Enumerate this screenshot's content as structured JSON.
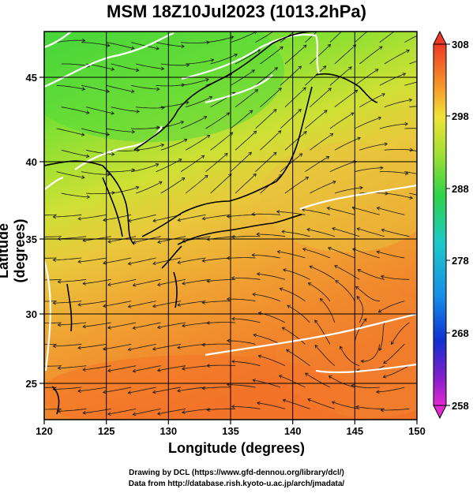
{
  "title": "MSM 18Z10Jul2023 (1013.2hPa)",
  "xlabel": "Longitude (degrees)",
  "ylabel": "Latitude  (degrees)",
  "x_ticks": [
    "120",
    "125",
    "130",
    "135",
    "140",
    "145",
    "150"
  ],
  "y_ticks": [
    "25",
    "30",
    "35",
    "40",
    "45"
  ],
  "colorbar_ticks": [
    "308",
    "298",
    "288",
    "278",
    "268",
    "258"
  ],
  "credit_line1": "Drawing by DCL (https://www.gfd-dennou.org/library/dcl/)",
  "credit_line2": "Data from http://database.rish.kyoto-u.ac.jp/arch/jmadata/",
  "map": {
    "lon_range": [
      120,
      150
    ],
    "lat_range": [
      22.4,
      47.6
    ],
    "grid_interval_deg": 5,
    "temperature_range_K": [
      258,
      308
    ],
    "field": "temperature with streamlines",
    "colors": {
      "land_cool": "#38d23a",
      "mid_green": "#8fe030",
      "yellow": "#e8d040",
      "orange": "#f09030",
      "warm_orange": "#f27228",
      "contour": "#ffffff",
      "coast": "#000000"
    }
  }
}
